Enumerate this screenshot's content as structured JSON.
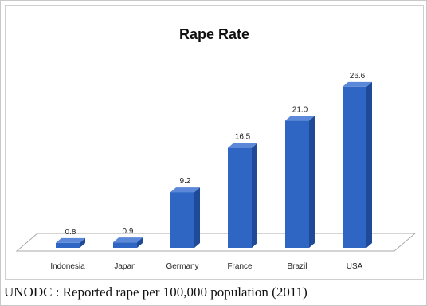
{
  "chart_data": {
    "type": "bar",
    "title": "Rape Rate",
    "categories": [
      "Indonesia",
      "Japan",
      "Germany",
      "France",
      "Brazil",
      "USA"
    ],
    "values": [
      0.8,
      0.9,
      9.2,
      16.5,
      21.0,
      26.6
    ],
    "value_labels": [
      "0.8",
      "0.9",
      "9.2",
      "16.5",
      "21.0",
      "26.6"
    ],
    "ylim": [
      0,
      28
    ],
    "grid": false,
    "legend": "none",
    "style": "3d-column",
    "colors": {
      "bar_front": "#2f66c4",
      "bar_side": "#1e4a98",
      "bar_top": "#5b88d8",
      "floor": "#ffffff"
    }
  },
  "caption": "UNODC : Reported rape per 100,000 population (2011)"
}
